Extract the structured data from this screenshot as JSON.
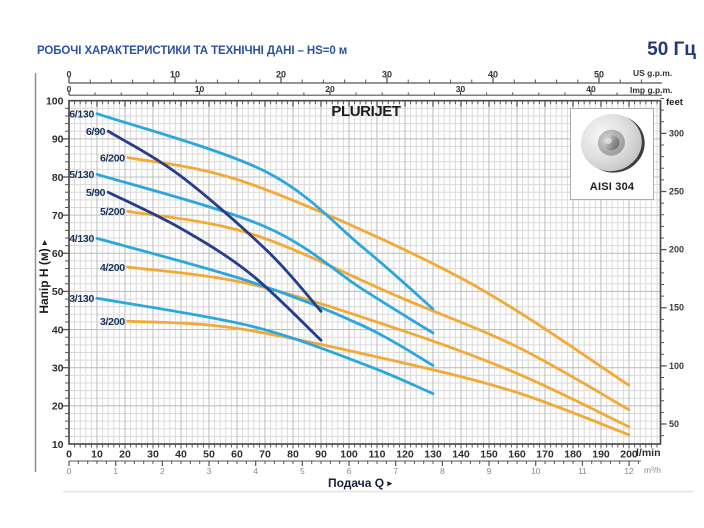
{
  "header": {
    "title": "РОБОЧІ ХАРАКТЕРИСТИКИ ТА ТЕХНІЧНІ ДАНІ  –  HS=0 м",
    "frequency": "50 Гц"
  },
  "axis_arrow": "▸",
  "chart_data": {
    "type": "line",
    "title": "PLURIJET",
    "material_badge": "AISI 304",
    "xlabel": "Подача Q",
    "ylabel": "Напір H (м)",
    "legend_position": "curve-start-labels",
    "grid": true,
    "axes": {
      "flow_lmin": {
        "unit": "l/min",
        "range": [
          0,
          200
        ],
        "ticks": [
          0,
          10,
          20,
          30,
          40,
          50,
          60,
          70,
          80,
          90,
          100,
          110,
          120,
          130,
          140,
          150,
          160,
          170,
          180,
          190,
          200
        ]
      },
      "flow_m3h": {
        "unit": "m³/h",
        "range": [
          0,
          12
        ],
        "ticks": [
          0,
          1,
          2,
          3,
          4,
          5,
          6,
          7,
          8,
          9,
          10,
          11,
          12
        ]
      },
      "flow_usgpm": {
        "unit": "US g.p.m.",
        "range": [
          0,
          55
        ],
        "ticks": [
          0,
          10,
          20,
          30,
          40,
          50
        ]
      },
      "flow_impgpm": {
        "unit": "Imp g.p.m.",
        "range": [
          0,
          45
        ],
        "ticks": [
          0,
          10,
          20,
          30,
          40
        ]
      },
      "head_m": {
        "unit": "м",
        "range": [
          10,
          100
        ],
        "ticks": [
          100,
          90,
          80,
          70,
          60,
          50,
          40,
          30,
          20,
          10
        ]
      },
      "head_feet": {
        "unit": "feet",
        "range": [
          30,
          330
        ],
        "ticks": [
          300,
          250,
          200,
          150,
          100,
          50
        ]
      }
    },
    "colors": {
      "light_blue": "#2BA7DF",
      "navy": "#243E8B",
      "orange": "#F4A935",
      "curve_label": "#16335C",
      "grid_minor": "#dadada",
      "grid_major": "#c0c0c0",
      "axis_dark": "#4c4c4c",
      "tick": "#555555",
      "number_dark": "#2e2e2e",
      "number_grey": "#8a8a8a"
    },
    "series": [
      {
        "name": "6/130",
        "color": "light_blue",
        "points": [
          [
            10,
            96.6
          ],
          [
            70,
            81.5
          ],
          [
            105,
            61.5
          ],
          [
            130,
            45.4
          ]
        ]
      },
      {
        "name": "6/90",
        "color": "navy",
        "points": [
          [
            14,
            92
          ],
          [
            40,
            80.2
          ],
          [
            71,
            60.5
          ],
          [
            90,
            44.8
          ]
        ]
      },
      {
        "name": "6/200",
        "color": "orange",
        "points": [
          [
            21,
            85.1
          ],
          [
            65,
            78.1
          ],
          [
            140,
            53.5
          ],
          [
            200,
            25.4
          ]
        ]
      },
      {
        "name": "5/130",
        "color": "light_blue",
        "points": [
          [
            10,
            80.7
          ],
          [
            70,
            67
          ],
          [
            105,
            50.5
          ],
          [
            130,
            39.1
          ]
        ]
      },
      {
        "name": "5/90",
        "color": "navy",
        "points": [
          [
            14,
            76
          ],
          [
            40,
            66.5
          ],
          [
            65,
            54.5
          ],
          [
            90,
            37.2
          ]
        ]
      },
      {
        "name": "5/200",
        "color": "orange",
        "points": [
          [
            21,
            71
          ],
          [
            65,
            65.1
          ],
          [
            118,
            48.5
          ],
          [
            160,
            35.5
          ],
          [
            200,
            19
          ]
        ]
      },
      {
        "name": "4/130",
        "color": "light_blue",
        "points": [
          [
            10,
            63.9
          ],
          [
            65,
            52.5
          ],
          [
            105,
            41
          ],
          [
            130,
            30.6
          ]
        ]
      },
      {
        "name": "4/200",
        "color": "orange",
        "points": [
          [
            21,
            56.4
          ],
          [
            65,
            51.9
          ],
          [
            118,
            40
          ],
          [
            160,
            28.5
          ],
          [
            200,
            14.5
          ]
        ]
      },
      {
        "name": "3/130",
        "color": "light_blue",
        "points": [
          [
            10,
            48.2
          ],
          [
            65,
            40.9
          ],
          [
            105,
            31
          ],
          [
            130,
            23.2
          ]
        ]
      },
      {
        "name": "3/200",
        "color": "orange",
        "points": [
          [
            21,
            42.2
          ],
          [
            60,
            40.3
          ],
          [
            118,
            31.5
          ],
          [
            160,
            23.5
          ],
          [
            200,
            12.4
          ]
        ]
      }
    ]
  }
}
